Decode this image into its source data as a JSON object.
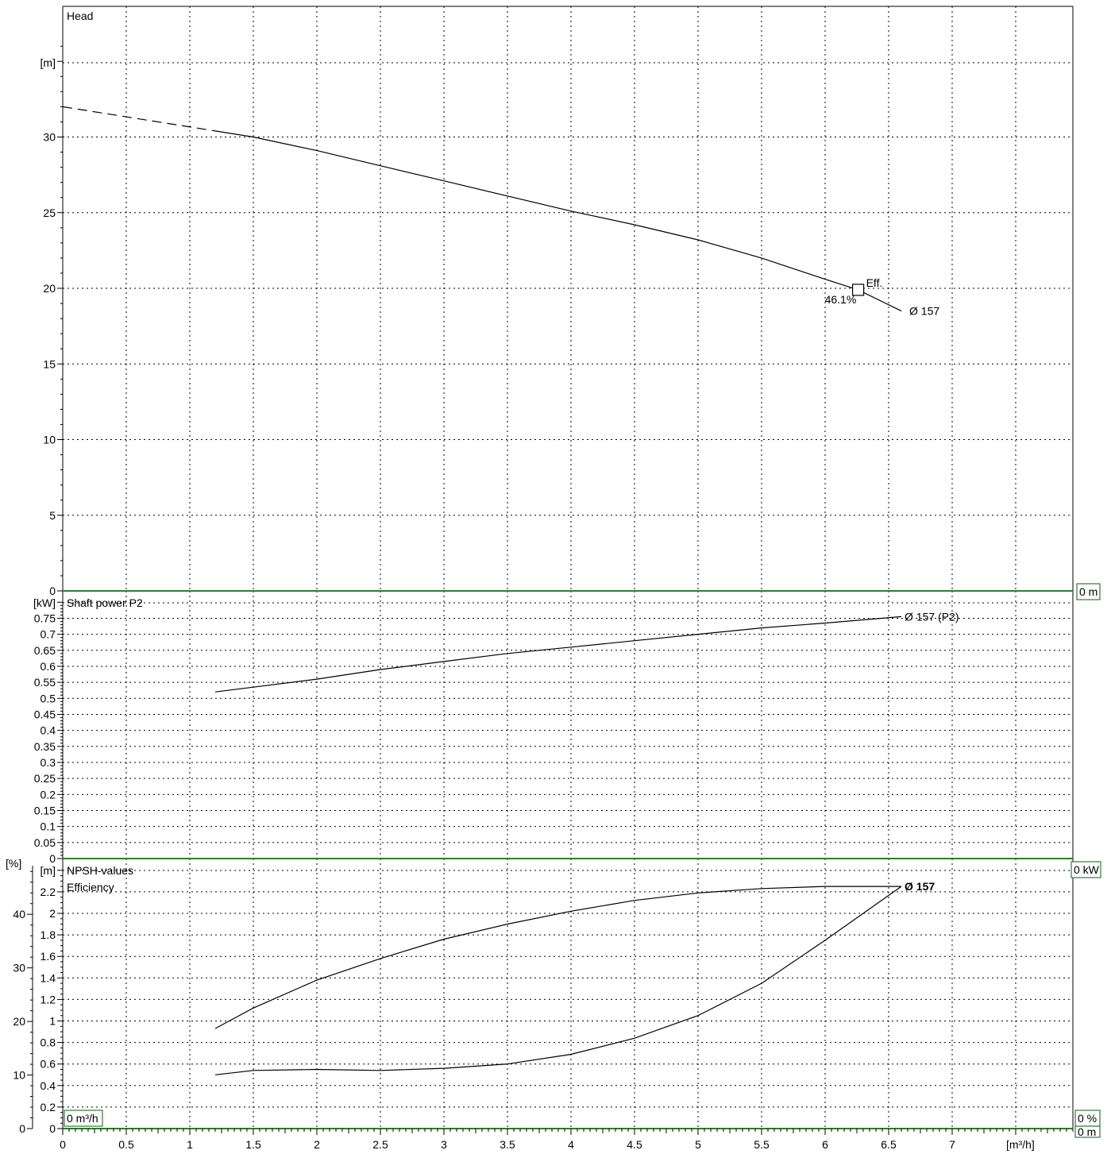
{
  "chart_data": [
    {
      "type": "line",
      "title": "Head",
      "ylabel": "[m]",
      "xlim": [
        0,
        7
      ],
      "ylim": [
        0,
        35
      ],
      "yticks": [
        0,
        5,
        10,
        15,
        20,
        25,
        30
      ],
      "end_box": "0 m",
      "series": [
        {
          "name": "Ø 157",
          "x": [
            1.2,
            1.5,
            2,
            2.5,
            3,
            3.5,
            4,
            4.5,
            5,
            5.5,
            6,
            6.26,
            6.6
          ],
          "y": [
            30.4,
            30.0,
            29.1,
            28.1,
            27.1,
            26.1,
            25.1,
            24.2,
            23.2,
            22.0,
            20.6,
            19.9,
            18.5
          ]
        }
      ],
      "extrapolation": {
        "x": [
          0,
          1.2
        ],
        "y": [
          32.0,
          30.4
        ]
      },
      "marker": {
        "x": 6.26,
        "y": 19.9,
        "label": "Eff.",
        "value": "46.1%"
      }
    },
    {
      "type": "line",
      "title": "Shaft power P2",
      "ylabel": "[kW]",
      "xlim": [
        0,
        7
      ],
      "ylim": [
        0,
        0.8
      ],
      "yticks": [
        "0",
        "0.05",
        "0.1",
        "0.15",
        "0.2",
        "0.25",
        "0.3",
        "0.35",
        "0.4",
        "0.45",
        "0.5",
        "0.55",
        "0.6",
        "0.65",
        "0.7",
        "0.75"
      ],
      "end_box": "0 kW",
      "series": [
        {
          "name": "Ø 157 (P2)",
          "x": [
            1.2,
            1.5,
            2,
            2.5,
            3,
            3.5,
            4,
            4.5,
            5,
            5.5,
            6,
            6.6
          ],
          "y": [
            0.52,
            0.535,
            0.56,
            0.59,
            0.615,
            0.64,
            0.66,
            0.68,
            0.7,
            0.72,
            0.735,
            0.755
          ]
        }
      ]
    },
    {
      "type": "line",
      "title": "NPSH-values",
      "title2": "Efficiency",
      "ylabel": "[m]",
      "ylabel_left": "[%]",
      "xlabel": "[m³/h]",
      "xlim": [
        0,
        7
      ],
      "ylim": [
        0,
        2.4
      ],
      "yticks": [
        "0",
        "0.2",
        "0.4",
        "0.6",
        "0.8",
        "1",
        "1.2",
        "1.4",
        "1.6",
        "1.8",
        "2",
        "2.2"
      ],
      "yticks_left": [
        "0",
        "10",
        "20",
        "30",
        "40"
      ],
      "xticks": [
        "0",
        "0.5",
        "1",
        "1.5",
        "2",
        "2.5",
        "3",
        "3.5",
        "4",
        "4.5",
        "5",
        "5.5",
        "6",
        "6.5",
        "7"
      ],
      "corner_boxes": [
        "0 m³/h",
        "0 %",
        "0 m"
      ],
      "series": [
        {
          "name": "Ø 157",
          "x": [
            1.2,
            1.5,
            2,
            2.5,
            3,
            3.5,
            4,
            4.5,
            5,
            5.5,
            6,
            6.3,
            6.6
          ],
          "y": [
            0.93,
            1.12,
            1.38,
            1.58,
            1.76,
            1.9,
            2.02,
            2.12,
            2.19,
            2.23,
            2.25,
            2.25,
            2.25
          ]
        },
        {
          "name": "NPSH",
          "x": [
            1.2,
            1.5,
            2,
            2.5,
            3,
            3.5,
            4,
            4.5,
            5,
            5.5,
            6,
            6.3,
            6.6
          ],
          "y": [
            0.5,
            0.54,
            0.55,
            0.54,
            0.56,
            0.6,
            0.69,
            0.84,
            1.05,
            1.35,
            1.75,
            2.0,
            2.25
          ]
        }
      ]
    }
  ]
}
